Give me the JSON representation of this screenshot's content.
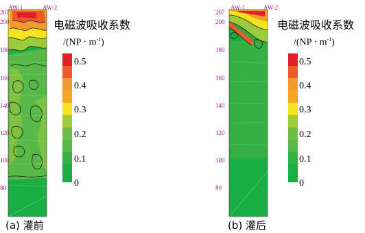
{
  "colors": {
    "c0": "#1aaf42",
    "c1": "#58b848",
    "c2": "#9ccc3c",
    "c3": "#f5e31e",
    "c4": "#f39a2e",
    "c5": "#ea5a2a",
    "c6": "#e31e26"
  },
  "panels": [
    {
      "id": "a",
      "caption": "(a) 灌前",
      "borehole_left": "AW-1",
      "borehole_right": "AW-2",
      "top_elevation": "207",
      "y_ticks": [
        "200",
        "180",
        "160",
        "140",
        "120",
        "100",
        "80"
      ]
    },
    {
      "id": "b",
      "caption": "(b) 灌后",
      "borehole_left": "AW-1",
      "borehole_right": "AW-2",
      "top_elevation": "207",
      "y_ticks": [
        "200",
        "180",
        "160",
        "140",
        "120",
        "100",
        "80"
      ]
    }
  ],
  "legend": {
    "title": "电磁波吸收系数",
    "unit_main": "/(NP · m",
    "unit_sup": "-1",
    "unit_end": ")",
    "labels": [
      "0.5",
      "0.4",
      "0.3",
      "0.2",
      "0.1",
      "0"
    ]
  }
}
